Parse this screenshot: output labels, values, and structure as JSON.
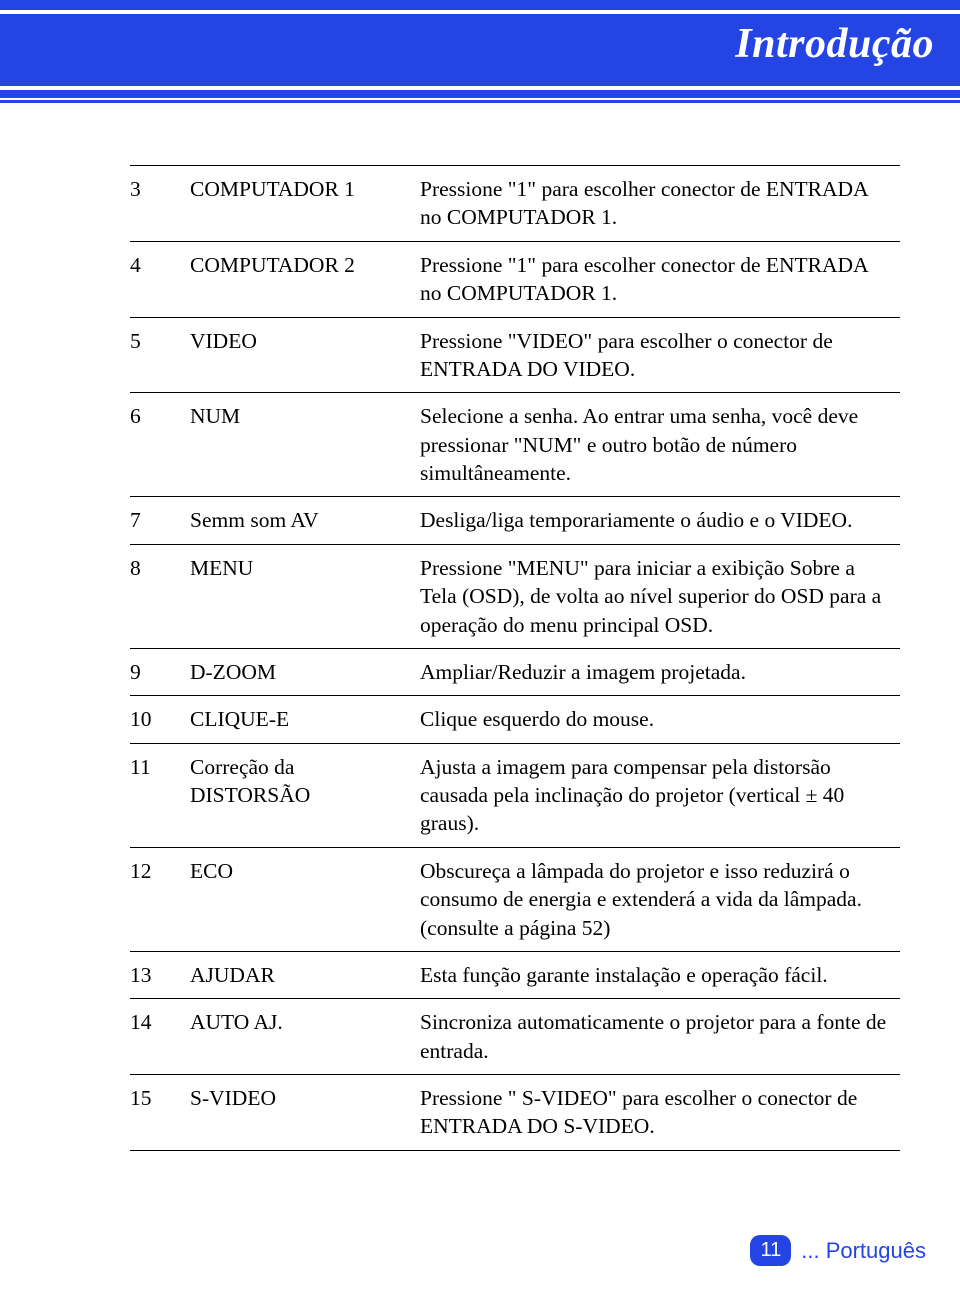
{
  "header": {
    "title": "Introdução"
  },
  "table": {
    "columns": [
      "num",
      "name",
      "desc"
    ],
    "rows": [
      {
        "num": "3",
        "name": "COMPUTADOR 1",
        "desc": "Pressione \"1\" para escolher conector de ENTRADA no COMPUTADOR 1."
      },
      {
        "num": "4",
        "name": "COMPUTADOR 2",
        "desc": "Pressione \"1\" para escolher conector de ENTRADA no COMPUTADOR 1."
      },
      {
        "num": "5",
        "name": "VIDEO",
        "desc": "Pressione \"VIDEO\" para escolher o conector de ENTRADA DO VIDEO."
      },
      {
        "num": "6",
        "name": "NUM",
        "desc": "Selecione a senha. Ao entrar uma senha, você deve pressionar \"NUM\" e outro botão de número simultâneamente."
      },
      {
        "num": "7",
        "name": "Semm som AV",
        "desc": "Desliga/liga temporariamente o áudio e o VIDEO."
      },
      {
        "num": "8",
        "name": "MENU",
        "desc": "Pressione \"MENU\" para iniciar a exibição Sobre a Tela (OSD), de volta ao nível superior do OSD para a operação do menu principal OSD."
      },
      {
        "num": "9",
        "name": "D-ZOOM",
        "desc": "Ampliar/Reduzir a imagem projetada."
      },
      {
        "num": "10",
        "name": "CLIQUE-E",
        "desc": "Clique esquerdo do mouse."
      },
      {
        "num": "11",
        "name": "Correção da DISTORSÃO",
        "desc": "Ajusta a imagem para compensar pela distorsão causada pela inclinação do projetor (vertical ± 40 graus)."
      },
      {
        "num": "12",
        "name": "ECO",
        "desc": "Obscureça a lâmpada do projetor e isso reduzirá o consumo de energia e extenderá a vida da lâmpada. (consulte a página 52)"
      },
      {
        "num": "13",
        "name": "AJUDAR",
        "desc": "Esta função garante instalação e operação fácil."
      },
      {
        "num": "14",
        "name": "AUTO AJ.",
        "desc": "Sincroniza automaticamente o projetor para a fonte de entrada."
      },
      {
        "num": "15",
        "name": "S-VIDEO",
        "desc": "Pressione \" S-VIDEO\" para escolher o conector de ENTRADA DO S-VIDEO."
      }
    ]
  },
  "footer": {
    "page": "11",
    "lang": "... Português"
  },
  "colors": {
    "brand_blue": "#2444e4",
    "text": "#000000",
    "background": "#ffffff"
  },
  "typography": {
    "title_fontsize": 42,
    "body_fontsize": 21.5,
    "footer_fontsize": 22,
    "badge_fontsize": 20
  }
}
